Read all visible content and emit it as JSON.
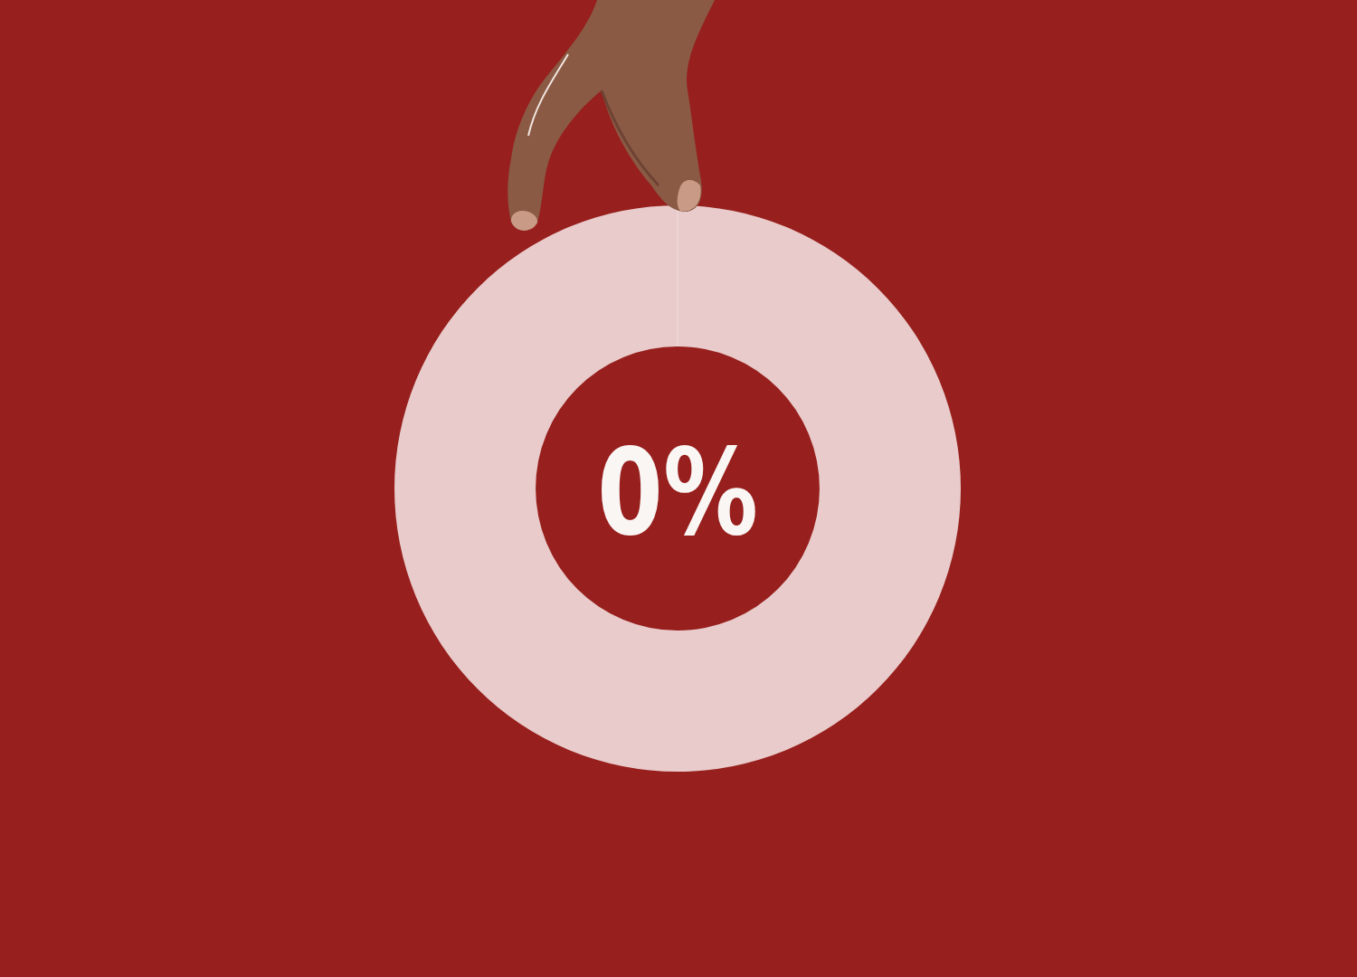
{
  "chart_data": {
    "type": "donut",
    "values": [
      0,
      100
    ],
    "value_labels": [
      "0%",
      null
    ],
    "colors": [
      "#f3dedd",
      "#e8cbca"
    ],
    "data_labels": true
  }
}
